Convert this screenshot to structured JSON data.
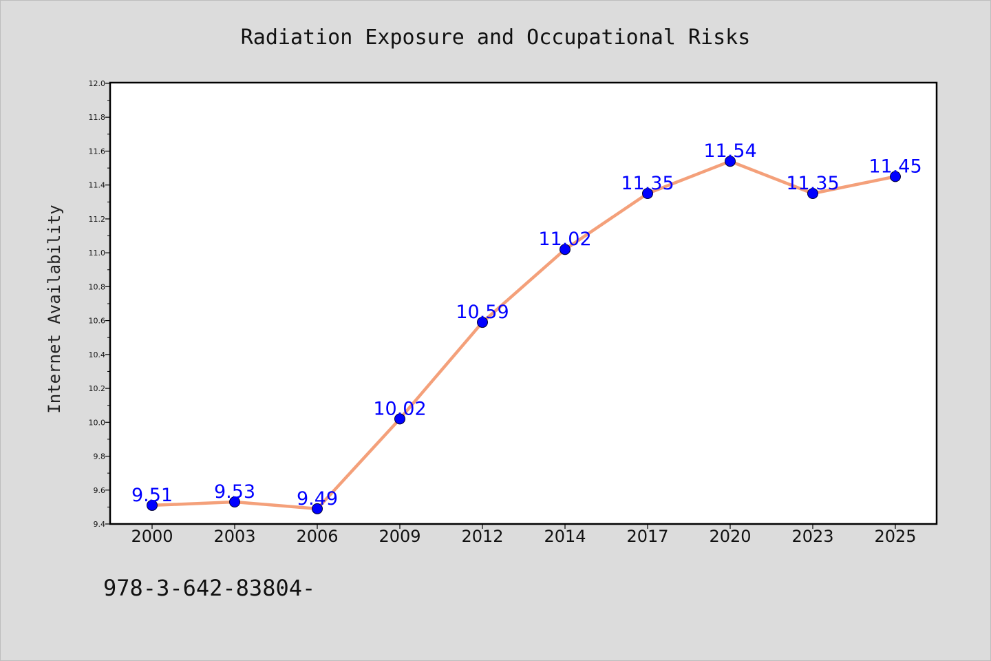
{
  "chart_data": {
    "type": "line",
    "title": "Radiation Exposure and Occupational Risks",
    "ylabel": "Internet Availability",
    "xlabel": "",
    "categories": [
      "2000",
      "2003",
      "2006",
      "2009",
      "2012",
      "2014",
      "2017",
      "2020",
      "2023",
      "2025"
    ],
    "series": [
      {
        "values": [
          9.51,
          9.53,
          9.49,
          10.02,
          10.59,
          11.02,
          11.35,
          11.54,
          11.35,
          11.45
        ],
        "line_color": "#f4a07a",
        "marker_color": "#0000ff"
      }
    ],
    "data_labels": [
      "9.51",
      "9.53",
      "9.49",
      "10.02",
      "10.59",
      "11.02",
      "11.35",
      "11.54",
      "11.35",
      "11.45"
    ],
    "ylim": [
      9.4,
      12.0
    ],
    "yticks": [
      "9.4",
      "9.6",
      "9.8",
      "10.0",
      "10.2",
      "10.4",
      "10.6",
      "10.8",
      "11.0",
      "11.2",
      "11.4",
      "11.6",
      "11.8",
      "12.0"
    ],
    "grid": false,
    "legend": "none"
  },
  "footnote": "978-3-642-83804-"
}
